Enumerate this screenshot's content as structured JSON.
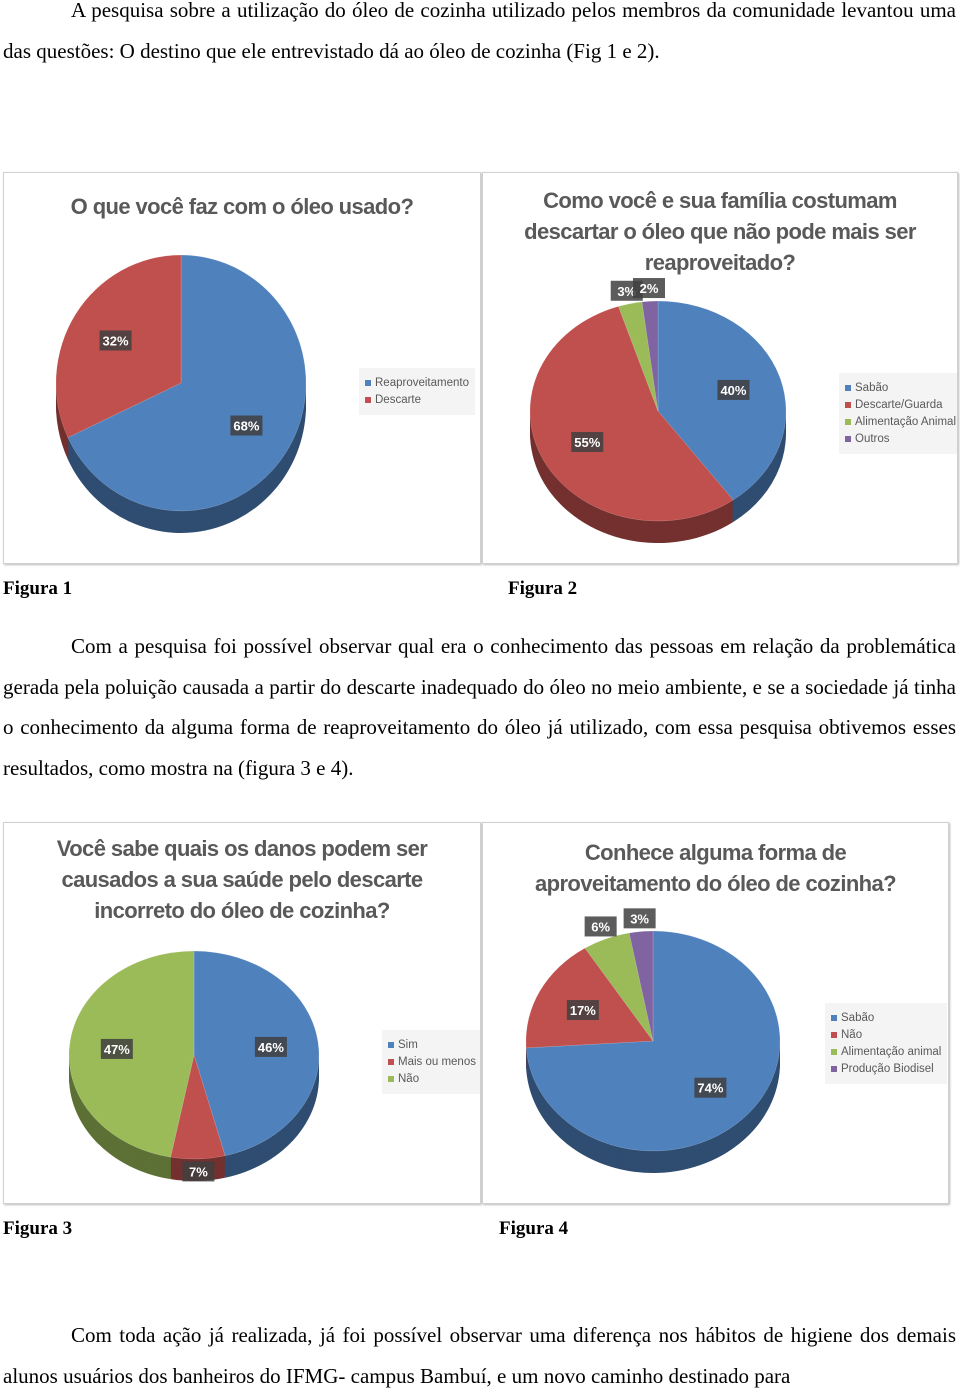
{
  "paragraphs": [
    "A pesquisa sobre a utilização do óleo de cozinha utilizado pelos membros da comunidade levantou uma das questões: O destino que ele entrevistado dá ao óleo de cozinha (Fig 1 e 2).",
    "Com a pesquisa foi possível observar qual era o conhecimento das pessoas em relação da problemática gerada pela poluição causada a partir do descarte inadequado do óleo no meio ambiente, e se a sociedade já tinha o conhecimento da alguma forma de reaproveitamento do óleo já utilizado, com essa pesquisa obtivemos esses resultados, como mostra na (figura 3 e 4).",
    "Com toda ação já realizada, já foi possível observar uma diferença nos hábitos de higiene dos demais alunos usuários dos banheiros do IFMG- campus Bambuí, e um novo caminho destinado para"
  ],
  "captions": [
    "Figura 1",
    "Figura 2",
    "Figura 3",
    "Figura 4"
  ],
  "chart_data": [
    {
      "type": "pie",
      "title": "O que você faz com o óleo usado?",
      "categories": [
        "Reaproveitamento",
        "Descarte"
      ],
      "values": [
        68,
        32
      ],
      "value_labels": [
        "68%",
        "32%"
      ],
      "colors": [
        "#4f81bd",
        "#c0504d"
      ]
    },
    {
      "type": "pie",
      "title": "Como você e sua família costumam descartar o óleo que não pode mais ser reaproveitado?",
      "categories": [
        "Sabão",
        "Descarte/Guarda",
        "Alimentação Animal",
        "Outros"
      ],
      "values": [
        40,
        55,
        3,
        2
      ],
      "value_labels": [
        "40%",
        "55%",
        "3%",
        "2%"
      ],
      "colors": [
        "#4f81bd",
        "#c0504d",
        "#9bbb59",
        "#8064a2"
      ]
    },
    {
      "type": "pie",
      "title": "Você sabe quais os danos podem ser causados a sua saúde pelo descarte incorreto do óleo de cozinha?",
      "categories": [
        "Sim",
        "Mais ou menos",
        "Não"
      ],
      "values": [
        46,
        7,
        47
      ],
      "value_labels": [
        "46%",
        "7%",
        "47%"
      ],
      "colors": [
        "#4f81bd",
        "#c0504d",
        "#9bbb59"
      ]
    },
    {
      "type": "pie",
      "title": "Conhece alguma forma de aproveitamento do óleo de cozinha?",
      "categories": [
        "Sabão",
        "Não",
        "Alimentação animal",
        "Produção Biodisel"
      ],
      "values": [
        74,
        17,
        6,
        3
      ],
      "value_labels": [
        "74%",
        "17%",
        "6%",
        "3%"
      ],
      "colors": [
        "#4f81bd",
        "#c0504d",
        "#9bbb59",
        "#8064a2"
      ]
    }
  ]
}
